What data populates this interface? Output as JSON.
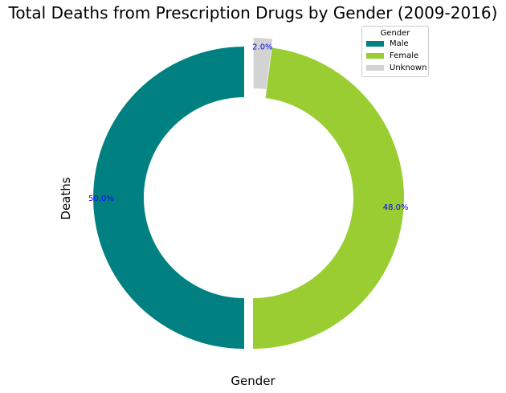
{
  "chart_data": {
    "type": "pie",
    "style": "donut",
    "title": "Total Deaths from Prescription Drugs by Gender (2009-2016)",
    "xlabel": "Gender",
    "ylabel": "Deaths",
    "legend_title": "Gender",
    "legend_position": "top-right",
    "slices": [
      {
        "label": "Male",
        "percent": 50.0,
        "display": "50.0%",
        "color": "#008080",
        "explode": true
      },
      {
        "label": "Female",
        "percent": 48.0,
        "display": "48.0%",
        "color": "#9ACD32",
        "explode": false
      },
      {
        "label": "Unknown",
        "percent": 2.0,
        "display": "2.0%",
        "color": "#D3D3D3",
        "explode": true
      }
    ],
    "start_angle_deg": 90,
    "direction": "counterclockwise",
    "label_color": "#0000FF"
  }
}
